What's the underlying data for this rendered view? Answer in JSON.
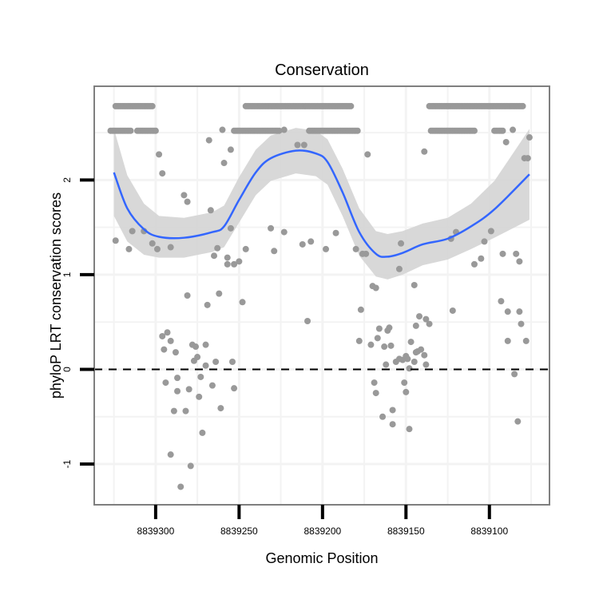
{
  "chart_data": {
    "type": "scatter",
    "title": "Conservation",
    "xlabel": "Genomic Position",
    "ylabel": "phyloP LRT conservation scores",
    "xlim": [
      8839336.8,
      8839064
    ],
    "x_reversed": true,
    "ylim": [
      -1.43,
      2.99
    ],
    "x_ticks": [
      8839300,
      8839250,
      8839200,
      8839150,
      8839100
    ],
    "x_tick_labels": [
      "8839300",
      "8839250",
      "8839200",
      "8839150",
      "8839100"
    ],
    "y_ticks": [
      -1,
      0,
      1,
      2
    ],
    "y_tick_labels": [
      "-1",
      "0",
      "1",
      "2"
    ],
    "grid": true,
    "reference_line": {
      "y": 0,
      "style": "dashed"
    },
    "colors": {
      "points": "#999999",
      "smooth": "#3366ff",
      "ci_band": "#d4d4d4",
      "border": "#7f7f7f",
      "grid": "#f3f3f3"
    },
    "dense_rows": [
      {
        "y": 2.78,
        "x_from": 8839302,
        "x_to": 8839324
      },
      {
        "y": 2.78,
        "x_from": 8839183,
        "x_to": 8839246
      },
      {
        "y": 2.78,
        "x_from": 8839080,
        "x_to": 8839136
      },
      {
        "y": 2.52,
        "x_from": 8839315,
        "x_to": 8839327
      },
      {
        "y": 2.52,
        "x_from": 8839300,
        "x_to": 8839311
      },
      {
        "y": 2.52,
        "x_from": 8839226,
        "x_to": 8839253
      },
      {
        "y": 2.52,
        "x_from": 8839179,
        "x_to": 8839208
      },
      {
        "y": 2.52,
        "x_from": 8839109,
        "x_to": 8839135
      },
      {
        "y": 2.52,
        "x_from": 8839092,
        "x_to": 8839097
      }
    ],
    "points": [
      [
        8839324,
        1.36
      ],
      [
        8839316,
        1.27
      ],
      [
        8839314,
        1.46
      ],
      [
        8839307,
        1.46
      ],
      [
        8839302,
        1.33
      ],
      [
        8839299,
        1.27
      ],
      [
        8839298,
        2.27
      ],
      [
        8839296,
        2.07
      ],
      [
        8839283,
        1.84
      ],
      [
        8839281,
        1.77
      ],
      [
        8839281,
        0.78
      ],
      [
        8839291,
        1.29
      ],
      [
        8839268,
        2.42
      ],
      [
        8839267,
        1.68
      ],
      [
        8839265,
        1.2
      ],
      [
        8839263,
        1.28
      ],
      [
        8839260,
        2.53
      ],
      [
        8839223,
        2.53
      ],
      [
        8839086,
        2.53
      ],
      [
        8839255,
        2.32
      ],
      [
        8839259,
        2.18
      ],
      [
        8839257,
        1.18
      ],
      [
        8839257,
        1.11
      ],
      [
        8839255,
        1.49
      ],
      [
        8839253,
        1.11
      ],
      [
        8839250,
        1.14
      ],
      [
        8839246,
        1.27
      ],
      [
        8839248,
        0.71
      ],
      [
        8839262,
        0.8
      ],
      [
        8839269,
        0.68
      ],
      [
        8839231,
        1.49
      ],
      [
        8839229,
        1.25
      ],
      [
        8839223,
        1.45
      ],
      [
        8839215,
        2.37
      ],
      [
        8839211,
        2.37
      ],
      [
        8839212,
        1.32
      ],
      [
        8839207,
        1.35
      ],
      [
        8839209,
        0.51
      ],
      [
        8839198,
        1.27
      ],
      [
        8839192,
        1.44
      ],
      [
        8839180,
        1.27
      ],
      [
        8839176,
        1.22
      ],
      [
        8839174,
        1.22
      ],
      [
        8839173,
        2.27
      ],
      [
        8839177,
        0.63
      ],
      [
        8839170,
        0.88
      ],
      [
        8839168,
        0.86
      ],
      [
        8839154,
        1.06
      ],
      [
        8839153,
        1.33
      ],
      [
        8839139,
        2.3
      ],
      [
        8839145,
        0.89
      ],
      [
        8839296,
        0.35
      ],
      [
        8839293,
        0.39
      ],
      [
        8839295,
        0.21
      ],
      [
        8839291,
        0.3
      ],
      [
        8839288,
        0.18
      ],
      [
        8839294,
        -0.14
      ],
      [
        8839287,
        -0.09
      ],
      [
        8839289,
        -0.44
      ],
      [
        8839282,
        -0.44
      ],
      [
        8839287,
        -0.23
      ],
      [
        8839291,
        -0.9
      ],
      [
        8839285,
        -1.24
      ],
      [
        8839279,
        -1.02
      ],
      [
        8839280,
        -0.21
      ],
      [
        8839278,
        0.26
      ],
      [
        8839276,
        0.24
      ],
      [
        8839277,
        0.09
      ],
      [
        8839275,
        0.13
      ],
      [
        8839270,
        0.26
      ],
      [
        8839273,
        -0.08
      ],
      [
        8839274,
        -0.29
      ],
      [
        8839272,
        -0.67
      ],
      [
        8839266,
        -0.17
      ],
      [
        8839264,
        0.08
      ],
      [
        8839261,
        -0.41
      ],
      [
        8839254,
        0.08
      ],
      [
        8839253,
        -0.2
      ],
      [
        8839270,
        0.04
      ],
      [
        8839178,
        0.3
      ],
      [
        8839171,
        0.26
      ],
      [
        8839167,
        0.33
      ],
      [
        8839168,
        -0.25
      ],
      [
        8839169,
        -0.14
      ],
      [
        8839166,
        0.43
      ],
      [
        8839164,
        -0.5
      ],
      [
        8839163,
        0.24
      ],
      [
        8839162,
        0.05
      ],
      [
        8839161,
        0.41
      ],
      [
        8839160,
        0.44
      ],
      [
        8839159,
        0.25
      ],
      [
        8839158,
        -0.43
      ],
      [
        8839158,
        -0.58
      ],
      [
        8839156,
        0.08
      ],
      [
        8839154,
        0.11
      ],
      [
        8839152,
        0.1
      ],
      [
        8839150,
        0.14
      ],
      [
        8839149,
        0.11
      ],
      [
        8839151,
        -0.14
      ],
      [
        8839150,
        -0.24
      ],
      [
        8839148,
        -0.63
      ],
      [
        8839147,
        0.29
      ],
      [
        8839144,
        0.18
      ],
      [
        8839143,
        0.19
      ],
      [
        8839141,
        0.21
      ],
      [
        8839139,
        0.15
      ],
      [
        8839138,
        0.05
      ],
      [
        8839145,
        0.08
      ],
      [
        8839148,
        0.01
      ],
      [
        8839142,
        0.56
      ],
      [
        8839144,
        0.46
      ],
      [
        8839138,
        0.53
      ],
      [
        8839136,
        0.48
      ],
      [
        8839123,
        1.38
      ],
      [
        8839120,
        1.45
      ],
      [
        8839122,
        0.62
      ],
      [
        8839109,
        1.11
      ],
      [
        8839105,
        1.17
      ],
      [
        8839103,
        1.35
      ],
      [
        8839099,
        1.46
      ],
      [
        8839092,
        1.22
      ],
      [
        8839093,
        0.72
      ],
      [
        8839090,
        2.4
      ],
      [
        8839089,
        0.61
      ],
      [
        8839089,
        0.3
      ],
      [
        8839084,
        1.22
      ],
      [
        8839082,
        1.14
      ],
      [
        8839082,
        0.61
      ],
      [
        8839081,
        0.48
      ],
      [
        8839078,
        0.3
      ],
      [
        8839076,
        2.45
      ],
      [
        8839079,
        2.23
      ],
      [
        8839077,
        2.23
      ],
      [
        8839085,
        -0.05
      ],
      [
        8839083,
        -0.55
      ]
    ],
    "smooth": {
      "x": [
        8839325,
        8839317,
        8839307,
        8839298,
        8839283,
        8839266,
        8839259,
        8839250,
        8839240,
        8839231,
        8839216,
        8839204,
        8839197,
        8839188,
        8839178,
        8839168,
        8839161,
        8839152,
        8839140,
        8839125,
        8839111,
        8839097,
        8839076
      ],
      "y": [
        2.08,
        1.7,
        1.48,
        1.4,
        1.39,
        1.45,
        1.51,
        1.79,
        2.08,
        2.23,
        2.31,
        2.28,
        2.19,
        1.87,
        1.45,
        1.22,
        1.19,
        1.23,
        1.32,
        1.38,
        1.51,
        1.69,
        2.06
      ],
      "ci_half_width": [
        0.46,
        0.35,
        0.27,
        0.22,
        0.21,
        0.21,
        0.22,
        0.24,
        0.24,
        0.24,
        0.24,
        0.24,
        0.24,
        0.25,
        0.25,
        0.24,
        0.24,
        0.23,
        0.22,
        0.22,
        0.24,
        0.3,
        0.48
      ]
    }
  }
}
